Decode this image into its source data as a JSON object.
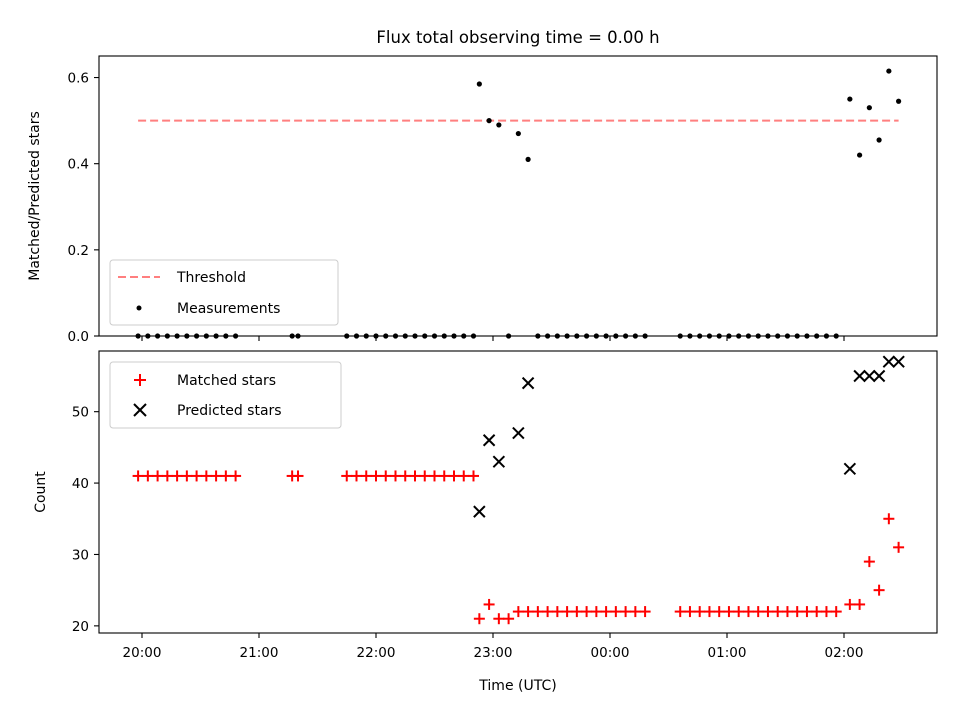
{
  "chart_data": {
    "type": "scatter",
    "title": "Flux total observing time = 0.00 h",
    "xlabel": "Time (UTC)",
    "x_ticks": [
      "20:00",
      "21:00",
      "22:00",
      "23:00",
      "00:00",
      "01:00",
      "02:00"
    ],
    "colors": {
      "threshold": "#ff7f7f",
      "measurements": "#000000",
      "matched": "#ff0000",
      "predicted": "#000000"
    },
    "panels": [
      {
        "ylabel": "Matched/Predicted stars",
        "ylim": [
          0,
          0.65
        ],
        "y_ticks": [
          "0.0",
          "0.2",
          "0.4",
          "0.6"
        ],
        "legend_position": "lower left",
        "threshold": {
          "name": "Threshold",
          "value": 0.5,
          "x_range": [
            "19:58",
            "02:28"
          ]
        },
        "measurements": {
          "name": "Measurements",
          "points": [
            [
              "19:58",
              0
            ],
            [
              "20:03",
              0
            ],
            [
              "20:08",
              0
            ],
            [
              "20:13",
              0
            ],
            [
              "20:18",
              0
            ],
            [
              "20:23",
              0
            ],
            [
              "20:28",
              0
            ],
            [
              "20:33",
              0
            ],
            [
              "20:38",
              0
            ],
            [
              "20:43",
              0
            ],
            [
              "20:48",
              0
            ],
            [
              "21:17",
              0
            ],
            [
              "21:20",
              0
            ],
            [
              "21:45",
              0
            ],
            [
              "21:50",
              0
            ],
            [
              "21:55",
              0
            ],
            [
              "22:00",
              0
            ],
            [
              "22:05",
              0
            ],
            [
              "22:10",
              0
            ],
            [
              "22:15",
              0
            ],
            [
              "22:20",
              0
            ],
            [
              "22:25",
              0
            ],
            [
              "22:30",
              0
            ],
            [
              "22:35",
              0
            ],
            [
              "22:40",
              0
            ],
            [
              "22:45",
              0
            ],
            [
              "22:50",
              0
            ],
            [
              "22:53",
              0.585
            ],
            [
              "22:58",
              0.5
            ],
            [
              "23:03",
              0.49
            ],
            [
              "23:08",
              0
            ],
            [
              "23:13",
              0.47
            ],
            [
              "23:18",
              0.41
            ],
            [
              "23:23",
              0
            ],
            [
              "23:28",
              0
            ],
            [
              "23:33",
              0
            ],
            [
              "23:38",
              0
            ],
            [
              "23:43",
              0
            ],
            [
              "23:48",
              0
            ],
            [
              "23:53",
              0
            ],
            [
              "23:58",
              0
            ],
            [
              "00:03",
              0
            ],
            [
              "00:08",
              0
            ],
            [
              "00:13",
              0
            ],
            [
              "00:18",
              0
            ],
            [
              "00:36",
              0
            ],
            [
              "00:41",
              0
            ],
            [
              "00:46",
              0
            ],
            [
              "00:51",
              0
            ],
            [
              "00:56",
              0
            ],
            [
              "01:01",
              0
            ],
            [
              "01:06",
              0
            ],
            [
              "01:11",
              0
            ],
            [
              "01:16",
              0
            ],
            [
              "01:21",
              0
            ],
            [
              "01:26",
              0
            ],
            [
              "01:31",
              0
            ],
            [
              "01:36",
              0
            ],
            [
              "01:41",
              0
            ],
            [
              "01:46",
              0
            ],
            [
              "01:51",
              0
            ],
            [
              "01:56",
              0
            ],
            [
              "02:03",
              0.55
            ],
            [
              "02:08",
              0.42
            ],
            [
              "02:13",
              0.53
            ],
            [
              "02:18",
              0.455
            ],
            [
              "02:23",
              0.615
            ],
            [
              "02:28",
              0.545
            ]
          ]
        }
      },
      {
        "ylabel": "Count",
        "ylim": [
          19,
          58.5
        ],
        "y_ticks": [
          "20",
          "30",
          "40",
          "50"
        ],
        "legend_position": "upper left",
        "matched": {
          "name": "Matched stars",
          "points": [
            [
              "19:58",
              41
            ],
            [
              "20:03",
              41
            ],
            [
              "20:08",
              41
            ],
            [
              "20:13",
              41
            ],
            [
              "20:18",
              41
            ],
            [
              "20:23",
              41
            ],
            [
              "20:28",
              41
            ],
            [
              "20:33",
              41
            ],
            [
              "20:38",
              41
            ],
            [
              "20:43",
              41
            ],
            [
              "20:48",
              41
            ],
            [
              "21:17",
              41
            ],
            [
              "21:20",
              41
            ],
            [
              "21:45",
              41
            ],
            [
              "21:50",
              41
            ],
            [
              "21:55",
              41
            ],
            [
              "22:00",
              41
            ],
            [
              "22:05",
              41
            ],
            [
              "22:10",
              41
            ],
            [
              "22:15",
              41
            ],
            [
              "22:20",
              41
            ],
            [
              "22:25",
              41
            ],
            [
              "22:30",
              41
            ],
            [
              "22:35",
              41
            ],
            [
              "22:40",
              41
            ],
            [
              "22:45",
              41
            ],
            [
              "22:50",
              41
            ],
            [
              "22:53",
              21
            ],
            [
              "22:58",
              23
            ],
            [
              "23:03",
              21
            ],
            [
              "23:08",
              21
            ],
            [
              "23:13",
              22
            ],
            [
              "23:18",
              22
            ],
            [
              "23:23",
              22
            ],
            [
              "23:28",
              22
            ],
            [
              "23:33",
              22
            ],
            [
              "23:38",
              22
            ],
            [
              "23:43",
              22
            ],
            [
              "23:48",
              22
            ],
            [
              "23:53",
              22
            ],
            [
              "23:58",
              22
            ],
            [
              "00:03",
              22
            ],
            [
              "00:08",
              22
            ],
            [
              "00:13",
              22
            ],
            [
              "00:18",
              22
            ],
            [
              "00:36",
              22
            ],
            [
              "00:41",
              22
            ],
            [
              "00:46",
              22
            ],
            [
              "00:51",
              22
            ],
            [
              "00:56",
              22
            ],
            [
              "01:01",
              22
            ],
            [
              "01:06",
              22
            ],
            [
              "01:11",
              22
            ],
            [
              "01:16",
              22
            ],
            [
              "01:21",
              22
            ],
            [
              "01:26",
              22
            ],
            [
              "01:31",
              22
            ],
            [
              "01:36",
              22
            ],
            [
              "01:41",
              22
            ],
            [
              "01:46",
              22
            ],
            [
              "01:51",
              22
            ],
            [
              "01:56",
              22
            ],
            [
              "02:03",
              23
            ],
            [
              "02:08",
              23
            ],
            [
              "02:13",
              29
            ],
            [
              "02:18",
              25
            ],
            [
              "02:23",
              35
            ],
            [
              "02:28",
              31
            ]
          ]
        },
        "predicted": {
          "name": "Predicted stars",
          "points": [
            [
              "22:53",
              36
            ],
            [
              "22:58",
              46
            ],
            [
              "23:03",
              43
            ],
            [
              "23:13",
              47
            ],
            [
              "23:18",
              54
            ],
            [
              "02:03",
              42
            ],
            [
              "02:08",
              55
            ],
            [
              "02:13",
              55
            ],
            [
              "02:18",
              55
            ],
            [
              "02:23",
              57
            ],
            [
              "02:28",
              57
            ]
          ]
        }
      }
    ]
  }
}
